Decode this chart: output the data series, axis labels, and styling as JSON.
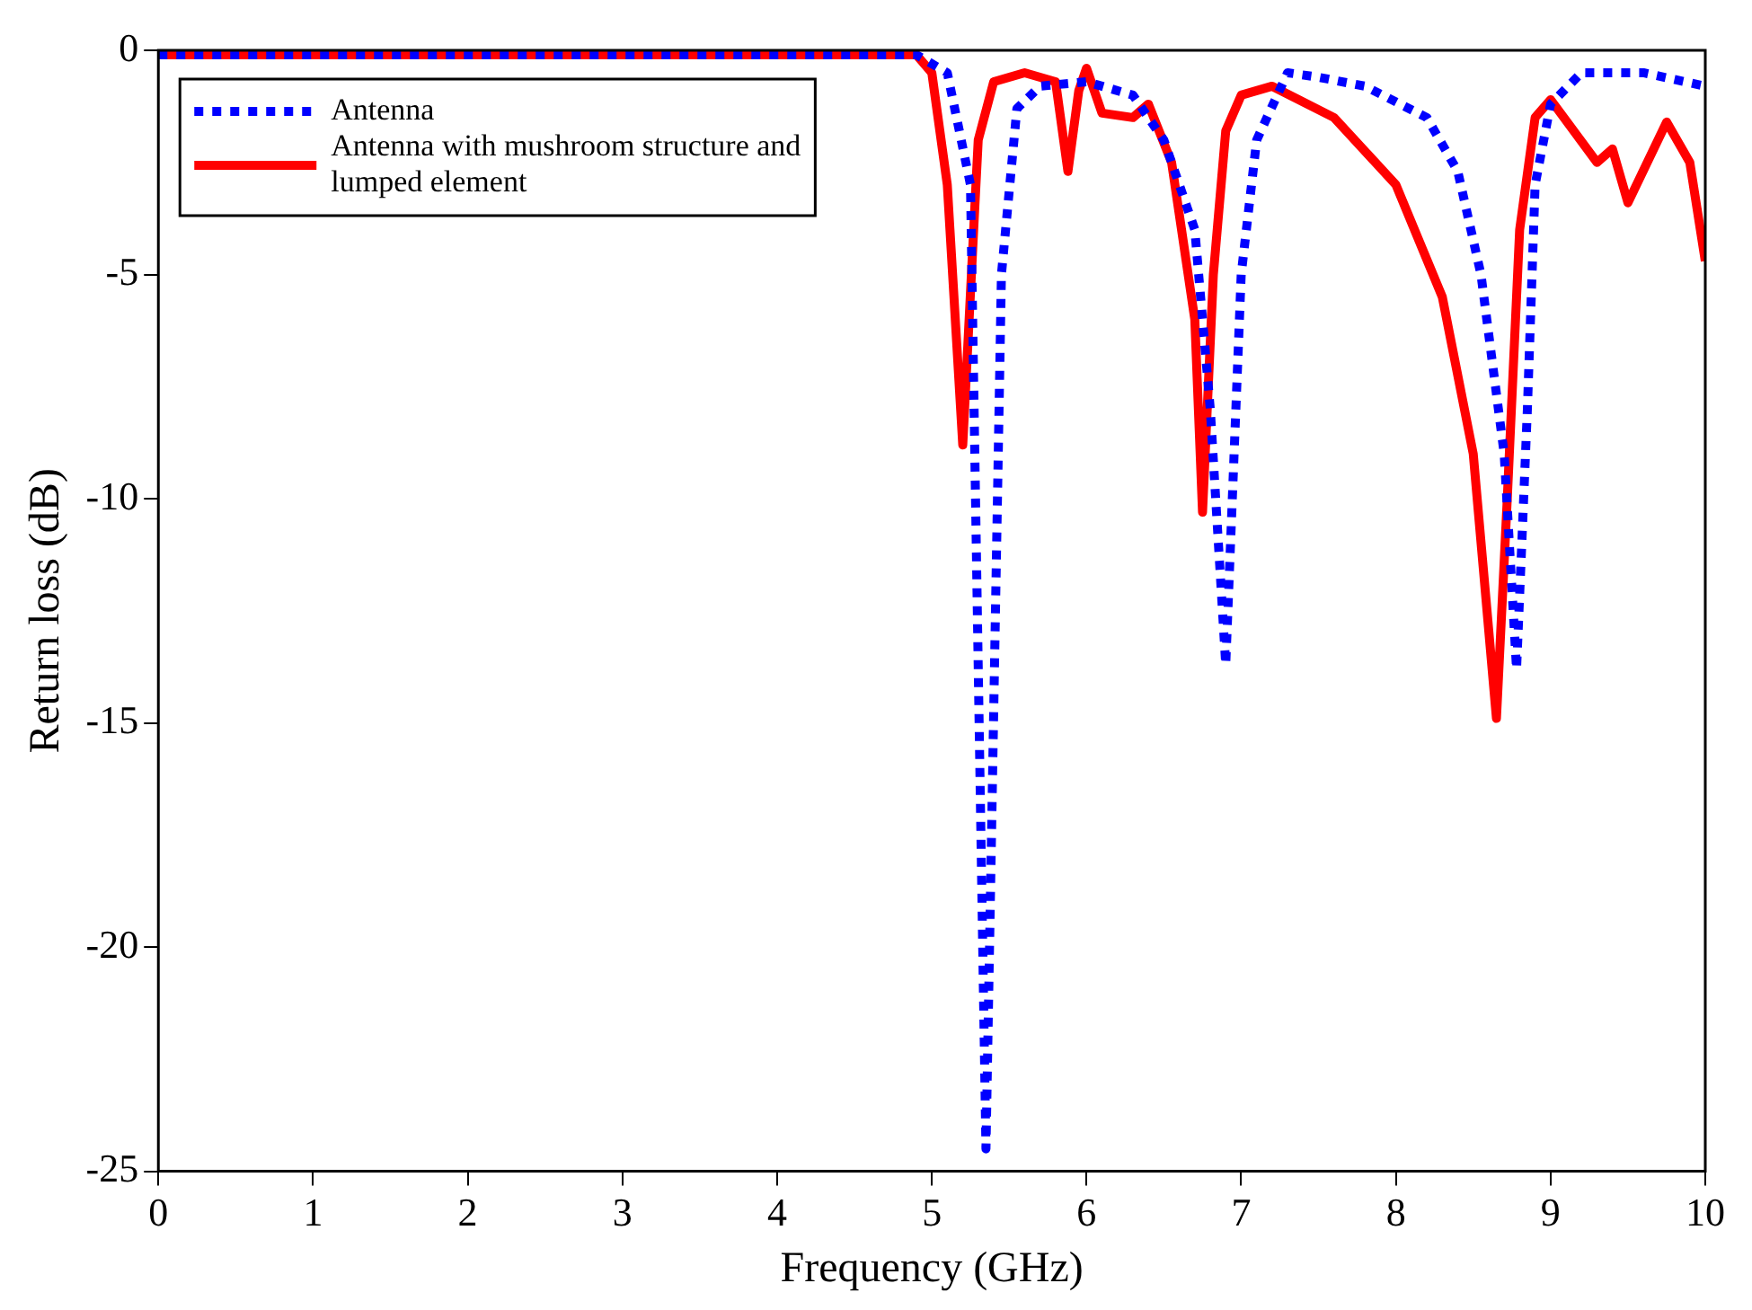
{
  "chart_data": {
    "type": "line",
    "xlabel": "Frequency (GHz)",
    "ylabel": "Return loss (dB)",
    "xlim": [
      0,
      10
    ],
    "ylim": [
      -25,
      0
    ],
    "xticks": [
      0,
      1,
      2,
      3,
      4,
      5,
      6,
      7,
      8,
      9,
      10
    ],
    "yticks": [
      -25,
      -20,
      -15,
      -10,
      -5,
      0
    ],
    "grid": false,
    "legend": "top left",
    "marker": "none",
    "series": [
      {
        "name": "Antenna",
        "color": "#0000ff",
        "line_style": "dotted",
        "x": [
          0,
          1,
          2,
          3,
          4,
          4.9,
          5.1,
          5.25,
          5.35,
          5.45,
          5.55,
          5.7,
          6.0,
          6.3,
          6.5,
          6.7,
          6.8,
          6.9,
          7.0,
          7.1,
          7.3,
          7.5,
          7.8,
          8.2,
          8.4,
          8.55,
          8.7,
          8.78,
          8.85,
          8.9,
          9.0,
          9.2,
          9.6,
          10
        ],
        "values": [
          -0.1,
          -0.1,
          -0.1,
          -0.1,
          -0.1,
          -0.1,
          -0.5,
          -3,
          -24.5,
          -5,
          -1.3,
          -0.8,
          -0.7,
          -1,
          -2,
          -4,
          -8,
          -13.7,
          -5,
          -2,
          -0.5,
          -0.6,
          -0.8,
          -1.5,
          -2.7,
          -5,
          -9,
          -13.8,
          -8,
          -3,
          -1.2,
          -0.5,
          -0.5,
          -0.8
        ]
      },
      {
        "name": "Antenna with mushroom structure and lumped element",
        "color": "#ff0000",
        "line_style": "solid",
        "x": [
          0,
          1,
          2,
          3,
          4,
          4.9,
          5.0,
          5.1,
          5.2,
          5.3,
          5.4,
          5.6,
          5.8,
          5.88,
          5.95,
          6.0,
          6.1,
          6.3,
          6.4,
          6.55,
          6.7,
          6.75,
          6.82,
          6.9,
          7.0,
          7.2,
          7.6,
          8.0,
          8.3,
          8.5,
          8.65,
          8.72,
          8.8,
          8.9,
          9.0,
          9.3,
          9.4,
          9.5,
          9.75,
          9.9,
          10
        ],
        "values": [
          -0.1,
          -0.1,
          -0.1,
          -0.1,
          -0.1,
          -0.1,
          -0.5,
          -3,
          -8.8,
          -2,
          -0.7,
          -0.5,
          -0.7,
          -2.7,
          -0.9,
          -0.4,
          -1.4,
          -1.5,
          -1.2,
          -2.5,
          -6,
          -10.3,
          -5,
          -1.8,
          -1,
          -0.8,
          -1.5,
          -3,
          -5.5,
          -9,
          -14.9,
          -10,
          -4,
          -1.5,
          -1.1,
          -2.5,
          -2.2,
          -3.4,
          -1.6,
          -2.5,
          -4.7
        ]
      }
    ]
  }
}
